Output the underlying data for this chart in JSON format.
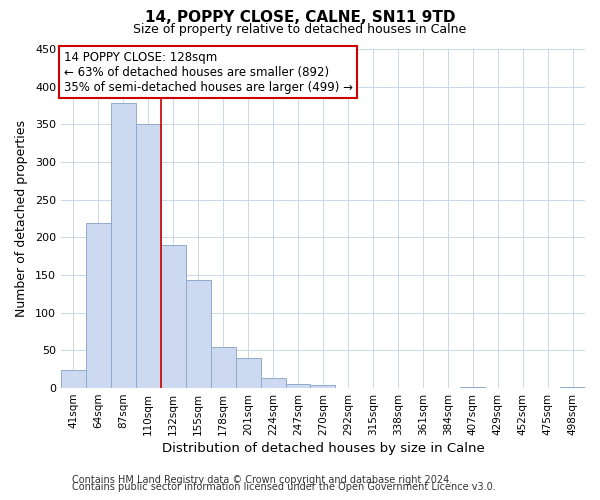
{
  "title": "14, POPPY CLOSE, CALNE, SN11 9TD",
  "subtitle": "Size of property relative to detached houses in Calne",
  "xlabel": "Distribution of detached houses by size in Calne",
  "ylabel": "Number of detached properties",
  "bar_labels": [
    "41sqm",
    "64sqm",
    "87sqm",
    "110sqm",
    "132sqm",
    "155sqm",
    "178sqm",
    "201sqm",
    "224sqm",
    "247sqm",
    "270sqm",
    "292sqm",
    "315sqm",
    "338sqm",
    "361sqm",
    "384sqm",
    "407sqm",
    "429sqm",
    "452sqm",
    "475sqm",
    "498sqm"
  ],
  "bar_values": [
    24,
    219,
    378,
    350,
    190,
    143,
    54,
    40,
    14,
    6,
    4,
    0,
    0,
    0,
    0,
    0,
    1,
    0,
    0,
    0,
    2
  ],
  "bar_color": "#ccd9f0",
  "bar_edge_color": "#90aacc",
  "vline_x": 3.5,
  "vline_color": "#cc0000",
  "annotation_text": "14 POPPY CLOSE: 128sqm\n← 63% of detached houses are smaller (892)\n35% of semi-detached houses are larger (499) →",
  "annotation_box_edge": "#cc0000",
  "ylim": [
    0,
    450
  ],
  "yticks": [
    0,
    50,
    100,
    150,
    200,
    250,
    300,
    350,
    400,
    450
  ],
  "footer_line1": "Contains HM Land Registry data © Crown copyright and database right 2024.",
  "footer_line2": "Contains public sector information licensed under the Open Government Licence v3.0.",
  "bg_color": "#ffffff",
  "grid_color": "#c8d8e8",
  "title_fontsize": 11,
  "subtitle_fontsize": 9,
  "annotation_fontsize": 8.5,
  "tick_fontsize": 7.5,
  "ylabel_fontsize": 9,
  "xlabel_fontsize": 9.5,
  "footer_fontsize": 7
}
